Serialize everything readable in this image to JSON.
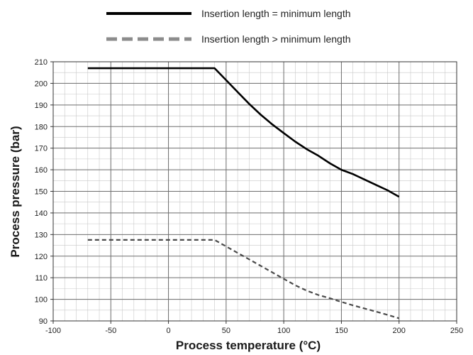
{
  "chart_data": {
    "type": "line",
    "xlabel": "Process temperature (°C)",
    "ylabel": "Process pressure (bar)",
    "xlim": [
      -100,
      250
    ],
    "ylim": [
      90,
      210
    ],
    "x_major_ticks": [
      "-100",
      "-50",
      "0",
      "50",
      "100",
      "150",
      "200",
      "250"
    ],
    "y_major_ticks": [
      "90",
      "100",
      "110",
      "120",
      "130",
      "140",
      "150",
      "160",
      "170",
      "180",
      "190",
      "200",
      "210"
    ],
    "x_minor_step": 10,
    "y_minor_step": 5,
    "grid": true,
    "legend_position": "top-center",
    "series": [
      {
        "name": "Insertion length = minimum length",
        "style": "solid",
        "color": "#000000",
        "x": [
          -70,
          40,
          50,
          60,
          70,
          80,
          90,
          100,
          110,
          120,
          130,
          140,
          150,
          160,
          170,
          180,
          190,
          200
        ],
        "y": [
          207,
          207,
          201.5,
          196,
          190.5,
          185.5,
          181,
          177,
          173,
          169.5,
          166.5,
          163,
          160,
          158,
          155.5,
          153,
          150.5,
          147.5
        ]
      },
      {
        "name": "Insertion length > minimum length",
        "style": "dashed",
        "color": "#4a4a4a",
        "legend_color": "#8c8c8c",
        "x": [
          -70,
          40,
          50,
          60,
          70,
          80,
          90,
          100,
          110,
          120,
          130,
          140,
          150,
          160,
          170,
          180,
          190,
          200
        ],
        "y": [
          127.5,
          127.5,
          124.5,
          121.5,
          118.5,
          115.5,
          112.5,
          109.5,
          106.5,
          104,
          102,
          100.5,
          98.8,
          97.2,
          95.8,
          94.3,
          92.8,
          91.2
        ]
      }
    ]
  }
}
